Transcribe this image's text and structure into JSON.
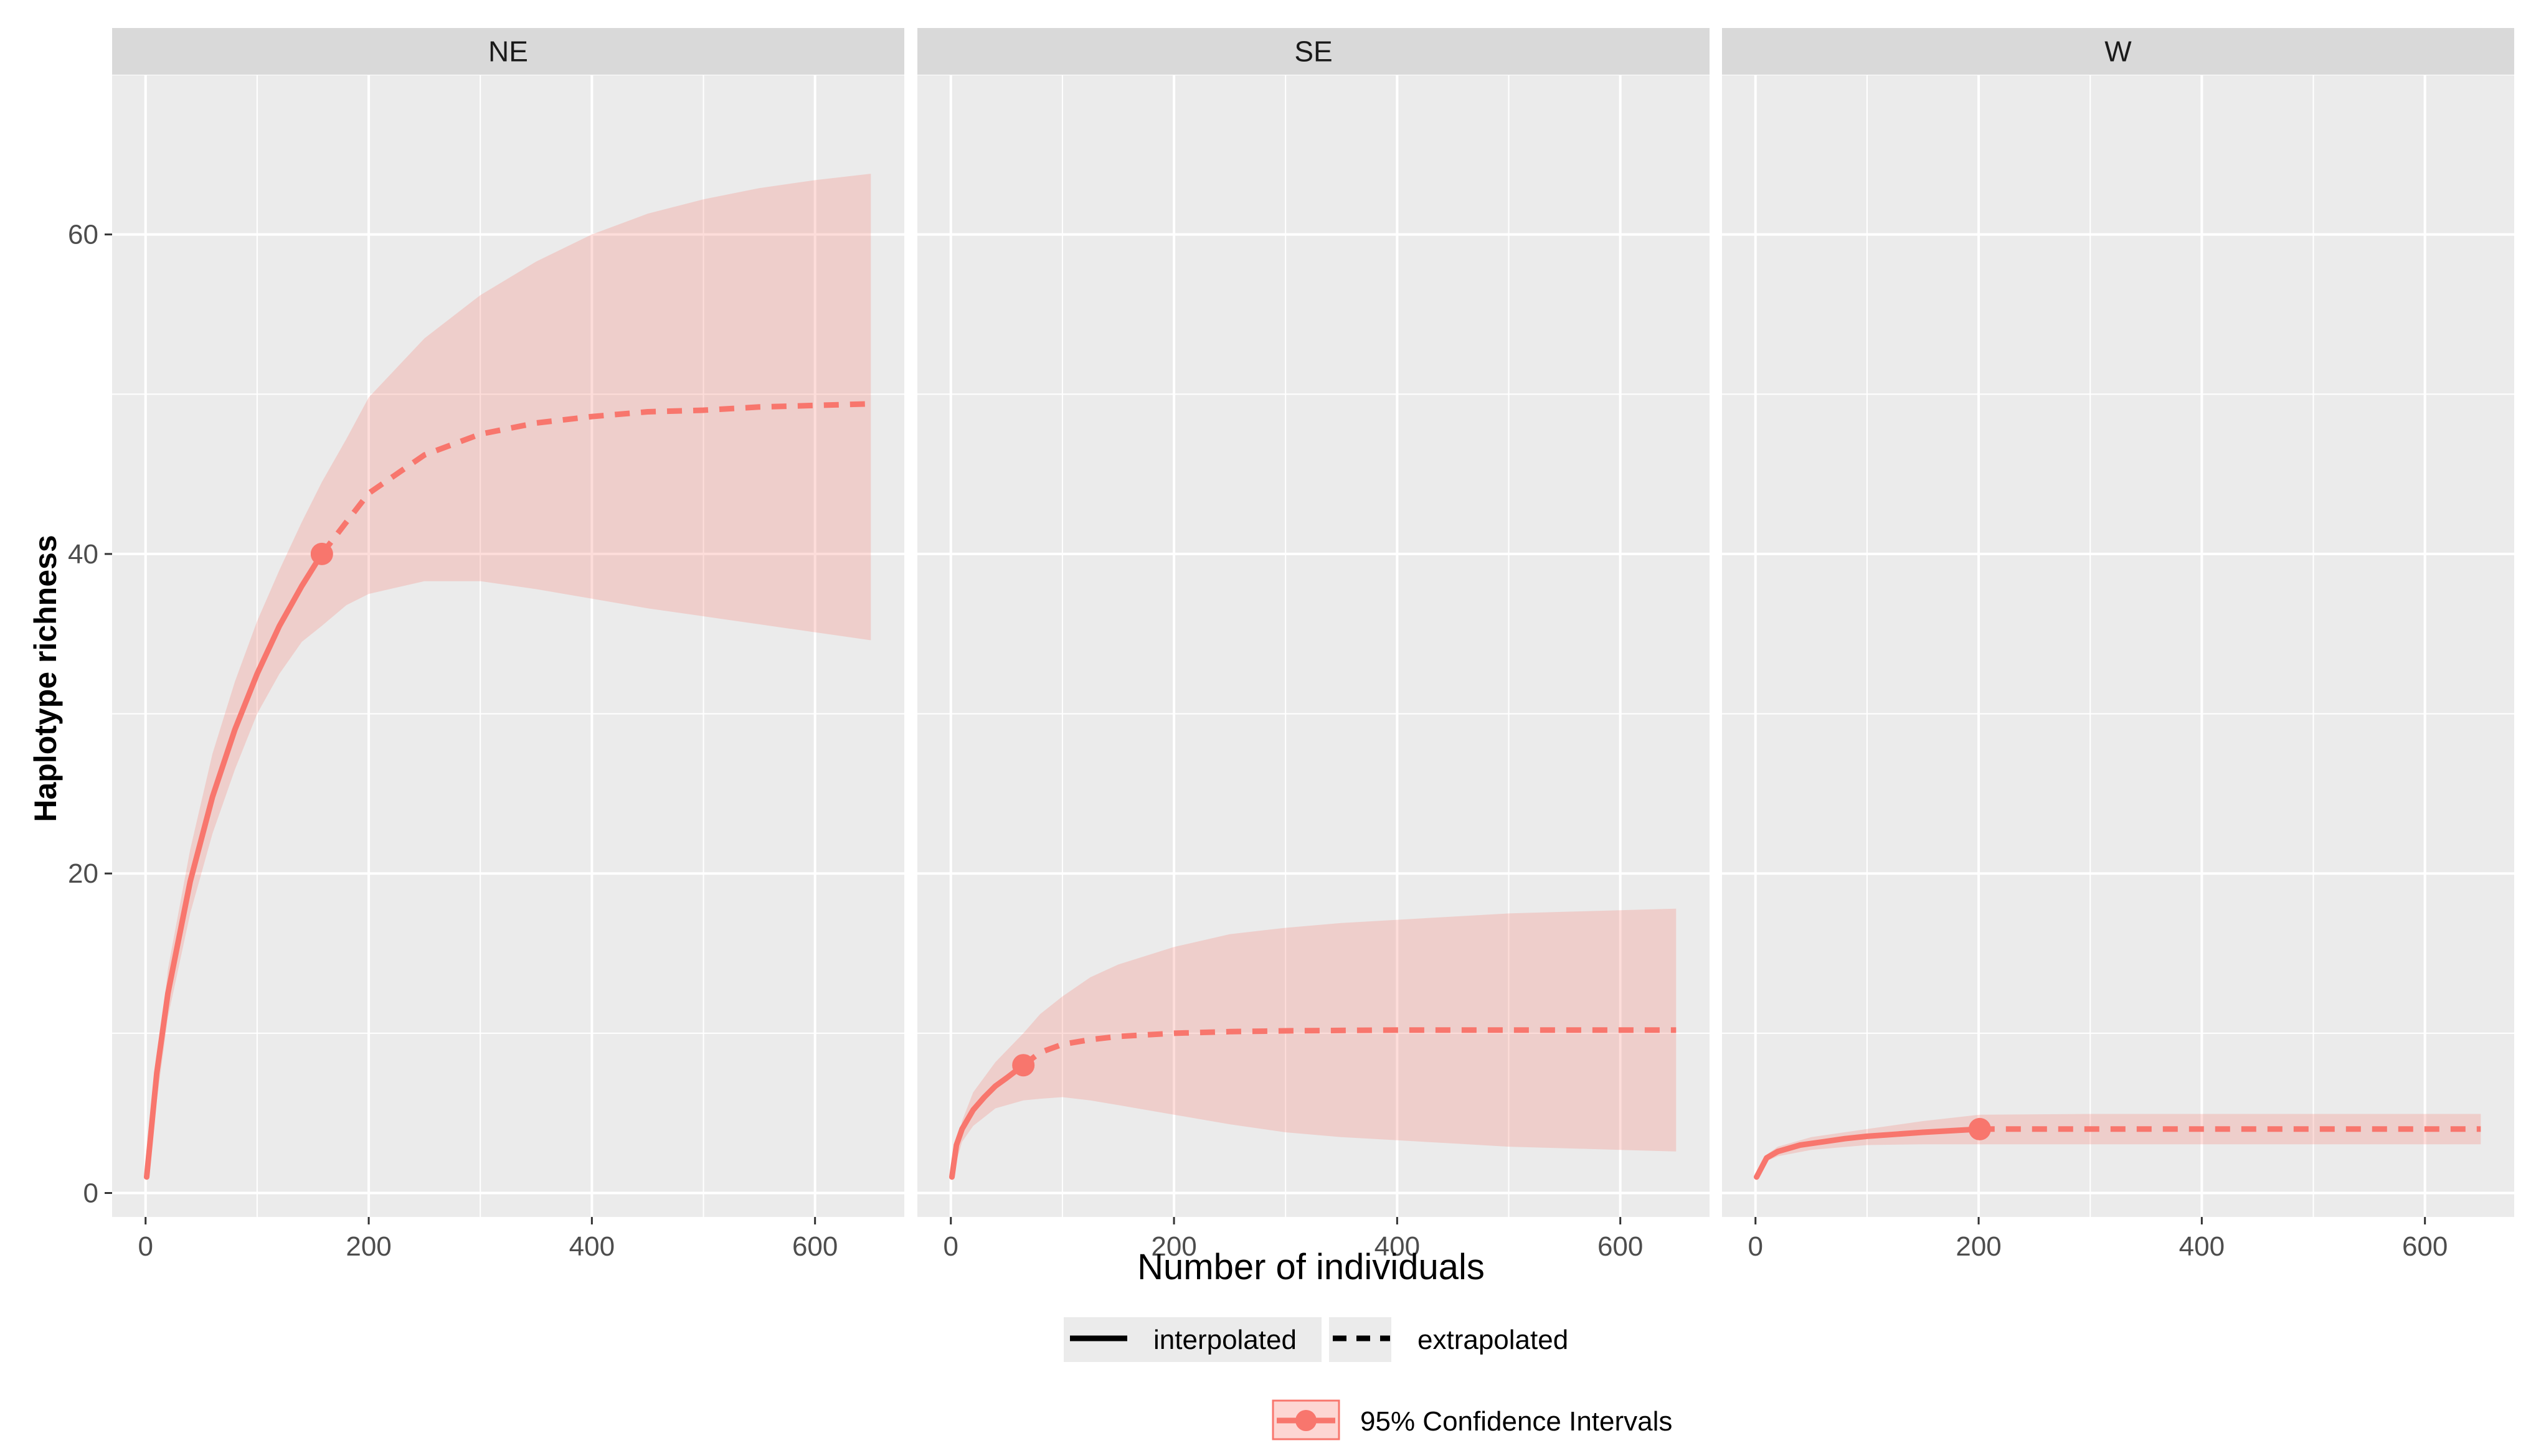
{
  "chart_data": {
    "type": "line",
    "xlabel": "Number of individuals",
    "ylabel": "Haplotype richness",
    "xlim": [
      -30,
      680
    ],
    "ylim": [
      -1.5,
      70
    ],
    "x_ticks": [
      0,
      200,
      400,
      600
    ],
    "y_ticks": [
      0,
      20,
      40,
      60
    ],
    "grid": true,
    "colors": {
      "series": "#F8766D",
      "band": "#F8766D",
      "panel_bg": "#EBEBEB",
      "strip_bg": "#D9D9D9",
      "grid": "#FFFFFF"
    },
    "panels": [
      {
        "name": "NE",
        "observed": {
          "x": 158,
          "y": 40
        },
        "interpolated": {
          "x": [
            1,
            10,
            20,
            40,
            60,
            80,
            100,
            120,
            140,
            158
          ],
          "y": [
            1,
            7.5,
            12.5,
            19.5,
            24.8,
            29,
            32.5,
            35.5,
            38,
            40
          ]
        },
        "extrapolated": {
          "x": [
            158,
            180,
            200,
            250,
            300,
            350,
            400,
            450,
            500,
            550,
            600,
            650
          ],
          "y": [
            40,
            42,
            43.8,
            46.2,
            47.5,
            48.2,
            48.6,
            48.9,
            49,
            49.2,
            49.3,
            49.4
          ]
        },
        "ci": {
          "x": [
            1,
            20,
            40,
            60,
            80,
            100,
            120,
            140,
            158,
            180,
            200,
            250,
            300,
            350,
            400,
            450,
            500,
            550,
            600,
            650
          ],
          "lower": [
            1,
            11,
            17.5,
            22.5,
            26.5,
            30,
            32.5,
            34.5,
            35.5,
            36.8,
            37.5,
            38.3,
            38.3,
            37.8,
            37.2,
            36.6,
            36.1,
            35.6,
            35.1,
            34.6
          ],
          "upper": [
            1,
            14,
            21.5,
            27.5,
            32,
            35.8,
            39,
            42,
            44.5,
            47.2,
            49.8,
            53.5,
            56.2,
            58.3,
            60,
            61.3,
            62.2,
            62.9,
            63.4,
            63.8
          ]
        }
      },
      {
        "name": "SE",
        "observed": {
          "x": 65,
          "y": 8
        },
        "interpolated": {
          "x": [
            1,
            5,
            10,
            20,
            30,
            40,
            50,
            65
          ],
          "y": [
            1,
            3,
            4,
            5.2,
            6,
            6.7,
            7.2,
            8
          ]
        },
        "extrapolated": {
          "x": [
            65,
            80,
            100,
            125,
            150,
            200,
            250,
            300,
            400,
            500,
            600,
            650
          ],
          "y": [
            8,
            8.8,
            9.3,
            9.6,
            9.8,
            10,
            10.1,
            10.15,
            10.2,
            10.2,
            10.2,
            10.2
          ]
        },
        "ci": {
          "x": [
            1,
            10,
            20,
            40,
            65,
            80,
            100,
            125,
            150,
            200,
            250,
            300,
            350,
            400,
            450,
            500,
            550,
            600,
            650
          ],
          "lower": [
            1,
            3.2,
            4.2,
            5.3,
            5.8,
            5.9,
            6,
            5.8,
            5.5,
            4.9,
            4.3,
            3.8,
            3.5,
            3.3,
            3.1,
            2.9,
            2.8,
            2.7,
            2.6
          ],
          "upper": [
            1,
            4.5,
            6.3,
            8.2,
            10,
            11.2,
            12.3,
            13.5,
            14.3,
            15.4,
            16.2,
            16.6,
            16.9,
            17.1,
            17.3,
            17.5,
            17.6,
            17.7,
            17.8
          ]
        }
      },
      {
        "name": "W",
        "observed": {
          "x": 201,
          "y": 4
        },
        "interpolated": {
          "x": [
            1,
            10,
            20,
            40,
            60,
            80,
            100,
            150,
            201
          ],
          "y": [
            1,
            2.2,
            2.6,
            3,
            3.2,
            3.4,
            3.55,
            3.8,
            4
          ]
        },
        "extrapolated": {
          "x": [
            201,
            300,
            400,
            500,
            600,
            650
          ],
          "y": [
            4,
            4,
            4,
            4,
            4,
            4
          ]
        },
        "ci": {
          "x": [
            1,
            10,
            20,
            50,
            100,
            150,
            201,
            300,
            400,
            500,
            600,
            650
          ],
          "lower": [
            1,
            2,
            2.3,
            2.7,
            3,
            3.05,
            3.05,
            3.05,
            3.05,
            3.05,
            3.05,
            3.05
          ],
          "upper": [
            1,
            2.4,
            2.9,
            3.5,
            4,
            4.5,
            4.9,
            4.95,
            4.95,
            4.95,
            4.95,
            4.95
          ]
        }
      }
    ],
    "legend": {
      "placement": "bottom",
      "line_types": [
        {
          "label": "interpolated",
          "dash": "solid"
        },
        {
          "label": "extrapolated",
          "dash": "dashed"
        }
      ],
      "ci_label": "95% Confidence Intervals"
    }
  }
}
